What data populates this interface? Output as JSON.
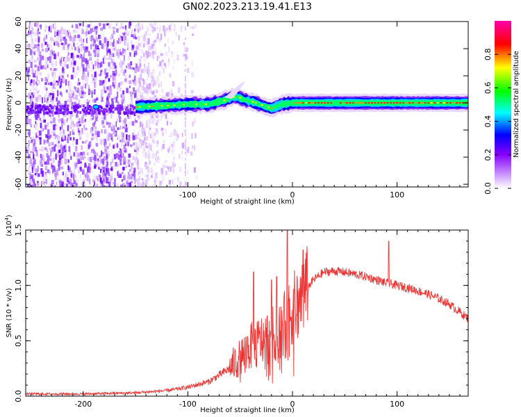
{
  "title": "GN02.2023.213.19.41.E13",
  "chart_data": [
    {
      "type": "heatmap",
      "xlabel": "Height of straight line (km)",
      "ylabel": "Frequency (Hz)",
      "xlim": [
        -255,
        168
      ],
      "ylim": [
        -62,
        60
      ],
      "xticks": [
        -200,
        -100,
        0,
        100
      ],
      "yticks": [
        -60,
        -40,
        -20,
        0,
        20,
        40,
        60
      ],
      "colorbar": {
        "label": "Normalized spectral amplitude",
        "range": [
          0,
          1
        ],
        "ticks": [
          "0.0",
          "0.2",
          "0.4",
          "0.6",
          "0.8"
        ],
        "colors": [
          "#ffffff",
          "#cc99ff",
          "#8800ff",
          "#0000ff",
          "#00ffff",
          "#00ff00",
          "#ffff00",
          "#ff0000",
          "#ff00aa"
        ]
      },
      "band": {
        "center_hz": [
          [
            -150,
            -3
          ],
          [
            -120,
            -2
          ],
          [
            -100,
            -1
          ],
          [
            -80,
            -1
          ],
          [
            -65,
            2
          ],
          [
            -55,
            5
          ],
          [
            -45,
            2
          ],
          [
            -35,
            0
          ],
          [
            -25,
            -3
          ],
          [
            -20,
            -4
          ],
          [
            -10,
            -1
          ],
          [
            0,
            0
          ],
          [
            50,
            0
          ],
          [
            100,
            0
          ],
          [
            168,
            0
          ]
        ],
        "halfwidth_hz": 3
      },
      "noise_region": {
        "x": [
          -255,
          -150
        ],
        "y": [
          -62,
          60
        ]
      }
    },
    {
      "type": "line",
      "xlabel": "Height of straight line (km)",
      "ylabel": "SNR (10 * v/v)",
      "scale_label": "(x10",
      "scale_exp": "4",
      "xlim": [
        -255,
        168
      ],
      "ylim": [
        0,
        1.5
      ],
      "xticks": [
        -200,
        -100,
        0,
        100
      ],
      "yticks": [
        "0.0",
        "0.5",
        "1.0",
        "1.5"
      ],
      "color": "#ee3333",
      "trend": {
        "x": [
          -255,
          -200,
          -150,
          -120,
          -100,
          -80,
          -60,
          -40,
          -30,
          -20,
          -10,
          0,
          10,
          20,
          30,
          40,
          50,
          60,
          70,
          80,
          90,
          100,
          110,
          120,
          130,
          140,
          150,
          160,
          168
        ],
        "y": [
          0.02,
          0.02,
          0.03,
          0.05,
          0.08,
          0.13,
          0.25,
          0.45,
          0.5,
          0.55,
          0.62,
          0.78,
          0.92,
          1.05,
          1.12,
          1.13,
          1.12,
          1.1,
          1.08,
          1.05,
          1.02,
          1.0,
          0.98,
          0.95,
          0.92,
          0.88,
          0.83,
          0.76,
          0.7
        ]
      },
      "spikes": [
        {
          "x": -37,
          "y": 1.12
        },
        {
          "x": -20,
          "y": 1.05
        },
        {
          "x": -15,
          "y": 1.08
        },
        {
          "x": -5,
          "y": 1.55
        },
        {
          "x": 10,
          "y": 1.32
        },
        {
          "x": 92,
          "y": 1.4
        }
      ]
    }
  ]
}
